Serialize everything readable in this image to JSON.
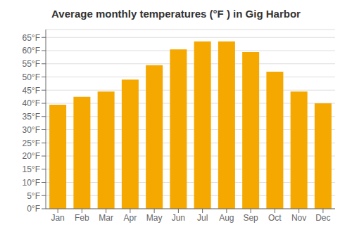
{
  "chart_data": {
    "type": "bar",
    "title": "Average monthly temperatures (°F ) in Gig Harbor",
    "categories": [
      "Jan",
      "Feb",
      "Mar",
      "Apr",
      "May",
      "Jun",
      "Jul",
      "Aug",
      "Sep",
      "Oct",
      "Nov",
      "Dec"
    ],
    "values": [
      39.5,
      42.5,
      44.5,
      49.0,
      54.5,
      60.5,
      63.5,
      63.5,
      59.5,
      52.0,
      44.5,
      40.0
    ],
    "color": "#F5A800",
    "ylim": [
      0,
      68
    ],
    "yticks": [
      {
        "value": 0,
        "label": "0°F"
      },
      {
        "value": 5,
        "label": "5°F"
      },
      {
        "value": 10,
        "label": "10°F"
      },
      {
        "value": 15,
        "label": "15°F"
      },
      {
        "value": 20,
        "label": "20°F"
      },
      {
        "value": 25,
        "label": "25°F"
      },
      {
        "value": 30,
        "label": "30°F"
      },
      {
        "value": 35,
        "label": "35°F"
      },
      {
        "value": 40,
        "label": "40°F"
      },
      {
        "value": 45,
        "label": "45°F"
      },
      {
        "value": 50,
        "label": "50°F"
      },
      {
        "value": 55,
        "label": "55°F"
      },
      {
        "value": 60,
        "label": "60°F"
      },
      {
        "value": 65,
        "label": "65°F"
      }
    ],
    "grid": true
  }
}
